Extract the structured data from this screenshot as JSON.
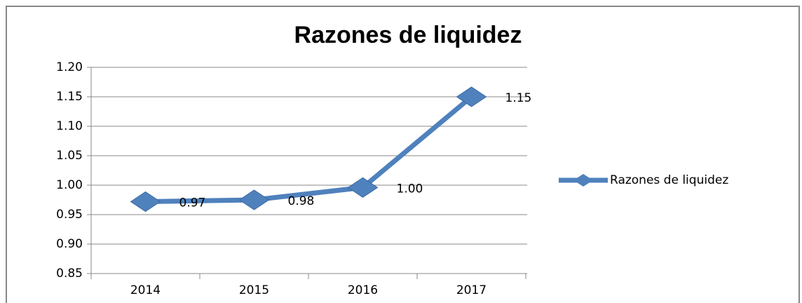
{
  "chart_data": {
    "type": "line",
    "title": "Razones de liquidez",
    "categories": [
      "2014",
      "2015",
      "2016",
      "2017"
    ],
    "series": [
      {
        "name": "Razones de liquidez",
        "color": "#4f81bd",
        "values": [
          0.972,
          0.975,
          0.996,
          1.15
        ],
        "value_labels": [
          "0.97",
          "0.98",
          "1.00",
          "1.15"
        ]
      }
    ],
    "ylim": [
      0.85,
      1.2
    ],
    "yticks": [
      0.85,
      {
        "value": 0.9,
        "label": "0.90"
      },
      0.95,
      {
        "value": 1.0,
        "label": "1.00"
      },
      1.05,
      {
        "value": 1.1,
        "label": "1.10"
      },
      1.15,
      {
        "value": 1.2,
        "label": "1.20"
      }
    ],
    "grid": true,
    "legend": "right"
  }
}
